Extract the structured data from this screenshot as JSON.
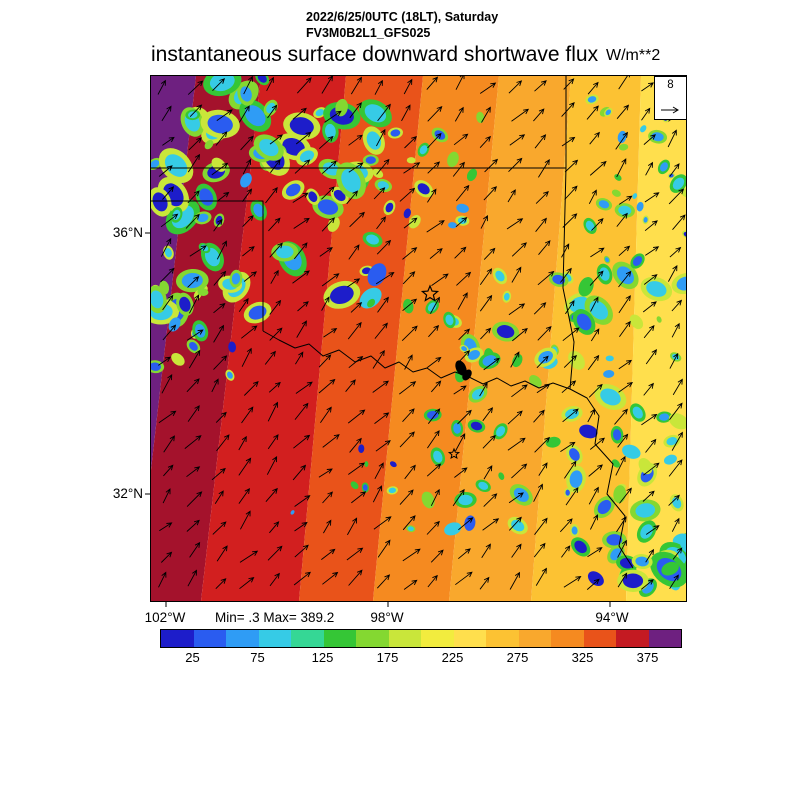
{
  "header": {
    "datetime_line": "2022/6/25/0UTC (18LT), Saturday",
    "model_line": "FV3M0B2L1_GFS025",
    "title": "instantaneous surface downward shortwave flux",
    "units_label": "W/m**2"
  },
  "map": {
    "lat_labels": [
      {
        "text": "36°N"
      },
      {
        "text": "32°N"
      }
    ],
    "lon_labels": [
      {
        "text": "102°W"
      },
      {
        "text": "98°W"
      },
      {
        "text": "94°W"
      }
    ],
    "stats_line": "Min= .3 Max= 389.2",
    "min_value": 0.3,
    "max_value": 389.2,
    "reference_vector": "8"
  },
  "colorbar": {
    "tick_labels": [
      "25",
      "75",
      "125",
      "175",
      "225",
      "275",
      "325",
      "375"
    ],
    "colors": [
      "#1d1dca",
      "#2a5cf0",
      "#2f9cf5",
      "#36cbe6",
      "#35d795",
      "#35c636",
      "#84d831",
      "#c9e63a",
      "#f2ec3e",
      "#ffdf4d",
      "#fcc233",
      "#f9a82d",
      "#f58a20",
      "#e9531a",
      "#c41a22",
      "#6e2080"
    ]
  },
  "chart_data": {
    "type": "heatmap",
    "title": "instantaneous surface downward shortwave flux",
    "units": "W/m**2",
    "datetime": "2022/6/25/0UTC (18LT), Saturday",
    "model": "FV3M0B2L1_GFS025",
    "x_tick_labels": [
      "102°W",
      "98°W",
      "94°W"
    ],
    "y_tick_labels": [
      "36°N",
      "32°N"
    ],
    "min": 0.3,
    "max": 389.2,
    "colorbar_tick_values": [
      25,
      75,
      125,
      175,
      225,
      275,
      325,
      375
    ],
    "reference_vector_value": 8,
    "overlay": "wind vectors",
    "legend_position": "bottom"
  }
}
